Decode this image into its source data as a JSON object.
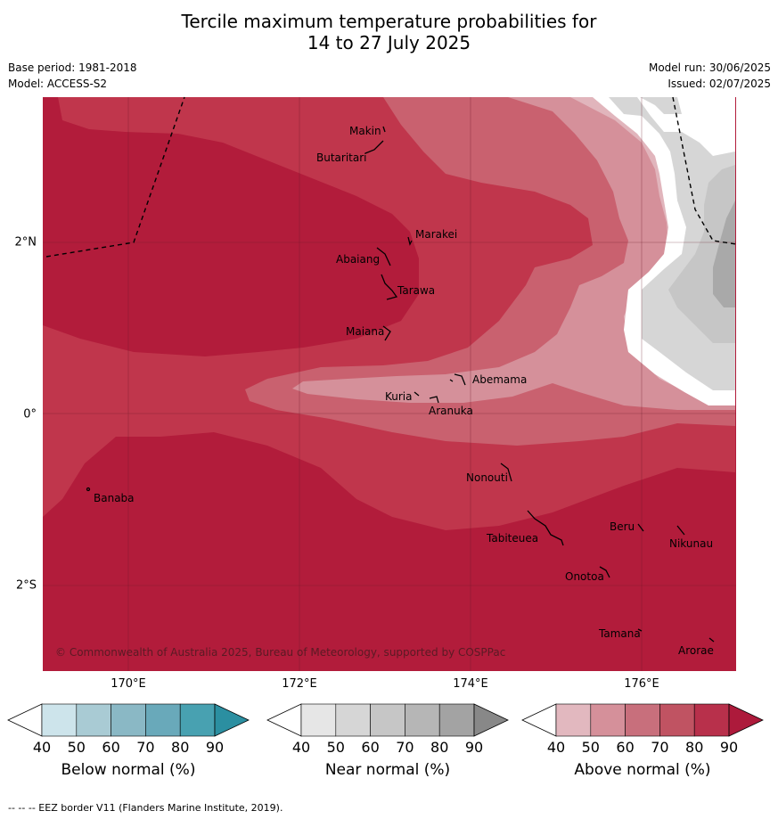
{
  "title_line1": "Tercile maximum temperature probabilities for",
  "title_line2": "14 to 27 July 2025",
  "base_period": "Base period: 1981-2018",
  "model": "Model: ACCESS-S2",
  "model_run": "Model run: 30/06/2025",
  "issued": "Issued: 02/07/2025",
  "lon_labels": [
    "170°E",
    "172°E",
    "174°E",
    "176°E"
  ],
  "lat_labels": [
    "2°N",
    "0°",
    "2°S"
  ],
  "places": [
    "Makin",
    "Butaritari",
    "Marakei",
    "Abaiang",
    "Tarawa",
    "Maiana",
    "Abemama",
    "Kuria",
    "Aranuka",
    "Banaba",
    "Nonouti",
    "Beru",
    "Nikunau",
    "Tabiteuea",
    "Onotoa",
    "Tamana",
    "Arorae"
  ],
  "copyright": "© Commonwealth of Australia 2025, Bureau of Meteorology, supported by COSPPac",
  "colorbars": [
    {
      "title": "Below normal (%)",
      "ticks": [
        "40",
        "50",
        "60",
        "70",
        "80",
        "90"
      ],
      "colors": [
        "#cde4eb",
        "#a9cbd4",
        "#8ab8c5",
        "#69a9ba",
        "#48a1b1",
        "#2b8fa1"
      ]
    },
    {
      "title": "Near normal (%)",
      "ticks": [
        "40",
        "50",
        "60",
        "70",
        "80",
        "90"
      ],
      "colors": [
        "#e6e6e6",
        "#d6d6d6",
        "#c6c6c6",
        "#b6b6b6",
        "#a3a3a3",
        "#888888"
      ]
    },
    {
      "title": "Above normal (%)",
      "ticks": [
        "40",
        "50",
        "60",
        "70",
        "80",
        "90"
      ],
      "colors": [
        "#e2b8bf",
        "#d5909a",
        "#c86f7c",
        "#c05362",
        "#b8304b",
        "#ad1a3b"
      ]
    }
  ],
  "footer": "--  --  -- EEZ border V11 (Flanders Marine Institute, 2019)."
}
